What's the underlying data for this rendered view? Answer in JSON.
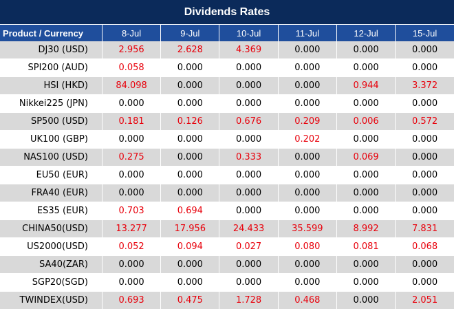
{
  "title": "Dividends Rates",
  "header": {
    "first": "Product / Currency",
    "dates": [
      "8-Jul",
      "9-Jul",
      "10-Jul",
      "11-Jul",
      "12-Jul",
      "15-Jul"
    ]
  },
  "colors": {
    "title_bg": "#0b2a5a",
    "header_bg": "#1f4e9c",
    "shade": "#d9d9d9",
    "positive": "#e8000b"
  },
  "rows": [
    {
      "name": "DJ30 (USD)",
      "values": [
        "2.956",
        "2.628",
        "4.369",
        "0.000",
        "0.000",
        "0.000"
      ]
    },
    {
      "name": "SPI200 (AUD)",
      "values": [
        "0.058",
        "0.000",
        "0.000",
        "0.000",
        "0.000",
        "0.000"
      ]
    },
    {
      "name": "HSI (HKD)",
      "values": [
        "84.098",
        "0.000",
        "0.000",
        "0.000",
        "0.944",
        "3.372"
      ]
    },
    {
      "name": "Nikkei225 (JPN)",
      "values": [
        "0.000",
        "0.000",
        "0.000",
        "0.000",
        "0.000",
        "0.000"
      ]
    },
    {
      "name": "SP500 (USD)",
      "values": [
        "0.181",
        "0.126",
        "0.676",
        "0.209",
        "0.006",
        "0.572"
      ]
    },
    {
      "name": "UK100 (GBP)",
      "values": [
        "0.000",
        "0.000",
        "0.000",
        "0.202",
        "0.000",
        "0.000"
      ]
    },
    {
      "name": "NAS100 (USD)",
      "values": [
        "0.275",
        "0.000",
        "0.333",
        "0.000",
        "0.069",
        "0.000"
      ]
    },
    {
      "name": "EU50 (EUR)",
      "values": [
        "0.000",
        "0.000",
        "0.000",
        "0.000",
        "0.000",
        "0.000"
      ]
    },
    {
      "name": "FRA40 (EUR)",
      "values": [
        "0.000",
        "0.000",
        "0.000",
        "0.000",
        "0.000",
        "0.000"
      ]
    },
    {
      "name": "ES35 (EUR)",
      "values": [
        "0.703",
        "0.694",
        "0.000",
        "0.000",
        "0.000",
        "0.000"
      ]
    },
    {
      "name": "CHINA50(USD)",
      "values": [
        "13.277",
        "17.956",
        "24.433",
        "35.599",
        "8.992",
        "7.831"
      ]
    },
    {
      "name": "US2000(USD)",
      "values": [
        "0.052",
        "0.094",
        "0.027",
        "0.080",
        "0.081",
        "0.068"
      ]
    },
    {
      "name": "SA40(ZAR)",
      "values": [
        "0.000",
        "0.000",
        "0.000",
        "0.000",
        "0.000",
        "0.000"
      ]
    },
    {
      "name": "SGP20(SGD)",
      "values": [
        "0.000",
        "0.000",
        "0.000",
        "0.000",
        "0.000",
        "0.000"
      ]
    },
    {
      "name": "TWINDEX(USD)",
      "values": [
        "0.693",
        "0.475",
        "1.728",
        "0.468",
        "0.000",
        "2.051"
      ]
    }
  ]
}
